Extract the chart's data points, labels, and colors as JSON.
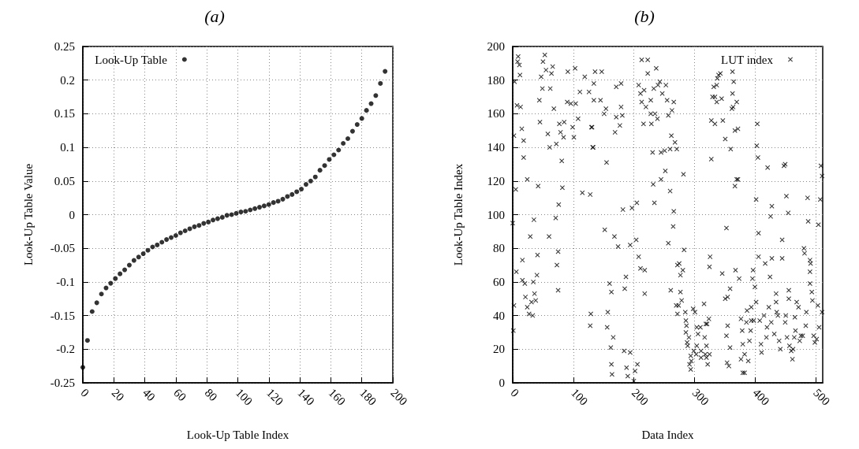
{
  "chart_data": [
    {
      "type": "scatter",
      "title": "(a)",
      "xlabel": "Look-Up Table Index",
      "ylabel": "Look-Up Table Value",
      "xlim": [
        0,
        200
      ],
      "xticks": [
        0,
        20,
        40,
        60,
        80,
        100,
        120,
        140,
        160,
        180,
        200
      ],
      "ylim": [
        -0.25,
        0.25
      ],
      "yticks": [
        -0.25,
        -0.2,
        -0.15,
        -0.1,
        -0.05,
        0,
        0.05,
        0.1,
        0.15,
        0.2,
        0.25
      ],
      "grid": true,
      "legend": "top left",
      "marker": "circle",
      "series": [
        {
          "name": "Look-Up Table",
          "color": "#000000",
          "x": [
            0,
            3,
            6,
            9,
            12,
            15,
            18,
            21,
            24,
            27,
            30,
            33,
            36,
            39,
            42,
            45,
            48,
            51,
            54,
            57,
            60,
            63,
            66,
            69,
            72,
            75,
            78,
            81,
            84,
            87,
            90,
            93,
            96,
            99,
            102,
            105,
            108,
            111,
            114,
            117,
            120,
            123,
            126,
            129,
            132,
            135,
            138,
            141,
            144,
            147,
            150,
            153,
            156,
            159,
            162,
            165,
            168,
            171,
            174,
            177,
            180,
            183,
            186,
            189,
            192,
            195
          ],
          "values": [
            -0.227,
            -0.187,
            -0.144,
            -0.131,
            -0.118,
            -0.109,
            -0.102,
            -0.095,
            -0.088,
            -0.082,
            -0.075,
            -0.068,
            -0.063,
            -0.058,
            -0.053,
            -0.048,
            -0.045,
            -0.041,
            -0.037,
            -0.034,
            -0.031,
            -0.027,
            -0.024,
            -0.021,
            -0.018,
            -0.016,
            -0.013,
            -0.011,
            -0.008,
            -0.006,
            -0.004,
            -0.001,
            0,
            0.002,
            0.004,
            0.005,
            0.007,
            0.009,
            0.011,
            0.013,
            0.015,
            0.018,
            0.02,
            0.023,
            0.027,
            0.03,
            0.034,
            0.038,
            0.045,
            0.05,
            0.056,
            0.066,
            0.073,
            0.082,
            0.089,
            0.096,
            0.106,
            0.113,
            0.124,
            0.134,
            0.143,
            0.155,
            0.165,
            0.177,
            0.195,
            0.213
          ]
        }
      ]
    },
    {
      "type": "scatter",
      "title": "(b)",
      "xlabel": "Data Index",
      "ylabel": "Look-Up Table Index",
      "xlim": [
        0,
        512
      ],
      "xticks": [
        0,
        100,
        200,
        300,
        400,
        500
      ],
      "ylim": [
        0,
        200
      ],
      "yticks": [
        0,
        20,
        40,
        60,
        80,
        100,
        120,
        140,
        160,
        180,
        200
      ],
      "grid": true,
      "legend": "top right",
      "marker": "cross",
      "series": [
        {
          "name": "LUT index",
          "color": "#000000",
          "x": [
            0,
            1,
            2,
            2,
            3,
            5,
            6,
            7,
            9,
            8,
            11,
            12,
            13,
            15,
            16,
            16,
            18,
            18,
            20,
            21,
            24,
            24,
            27,
            29,
            33,
            34,
            35,
            31,
            36,
            38,
            40,
            41,
            42,
            44,
            45,
            47,
            49,
            50,
            53,
            55,
            58,
            60,
            61,
            62,
            64,
            66,
            68,
            71,
            72,
            73,
            75,
            75,
            76,
            77,
            79,
            81,
            82,
            84,
            85,
            90,
            91,
            96,
            99,
            101,
            103,
            104,
            108,
            111,
            115,
            119,
            126,
            128,
            128,
            129,
            131,
            133,
            134,
            136,
            134,
            147,
            145,
            151,
            154,
            130,
            132,
            155,
            152,
            168,
            174,
            160,
            163,
            157,
            156,
            166,
            162,
            163,
            164,
            171,
            179,
            171,
            177,
            169,
            181,
            179,
            182,
            187,
            185,
            184,
            188,
            190,
            194,
            194,
            197,
            200,
            202,
            204,
            205,
            206,
            213,
            223,
            223,
            237,
            208,
            211,
            217,
            213,
            220,
            228,
            228,
            235,
            239,
            216,
            229,
            233,
            240,
            243,
            247,
            253,
            255,
            266,
            263,
            257,
            231,
            245,
            251,
            260,
            262,
            268,
            271,
            252,
            245,
            232,
            260,
            282,
            234,
            266,
            265,
            257,
            283,
            208,
            211,
            218,
            218,
            261,
            272,
            275,
            281,
            277,
            277,
            279,
            270,
            274,
            272,
            285,
            286,
            287,
            286,
            291,
            288,
            289,
            294,
            292,
            295,
            294,
            299,
            298,
            301,
            304,
            306,
            304,
            303,
            310,
            311,
            311,
            317,
            316,
            319,
            321,
            324,
            320,
            318,
            322,
            320,
            325,
            326,
            325,
            328,
            328,
            334,
            330,
            334,
            332,
            337,
            338,
            340,
            343,
            345,
            337,
            347,
            351,
            353,
            346,
            351,
            355,
            355,
            353,
            359,
            359,
            354,
            357,
            360,
            363,
            365,
            363,
            370,
            362,
            364,
            368,
            374,
            367,
            372,
            370,
            367,
            372,
            377,
            379,
            380,
            377,
            380,
            383,
            383,
            386,
            387,
            389,
            391,
            393,
            394,
            394,
            396,
            397,
            400,
            402,
            398,
            402,
            404,
            403,
            405,
            406,
            406,
            410,
            411,
            408,
            415,
            417,
            419,
            420,
            421,
            425,
            428,
            426,
            428,
            423,
            427,
            432,
            435,
            435,
            436,
            438,
            440,
            442,
            445,
            445,
            448,
            450,
            451,
            450,
            452,
            453,
            455,
            456,
            456,
            457,
            460,
            462,
            463,
            465,
            466,
            467,
            469,
            472,
            474,
            476,
            479,
            481,
            482,
            484,
            485,
            487,
            488,
            491,
            492,
            491,
            491,
            494,
            495,
            497,
            499,
            502,
            504,
            505,
            506,
            508,
            509,
            511,
            511
          ],
          "values": [
            95,
            31,
            46,
            147,
            179,
            115,
            66,
            165,
            194,
            191,
            189,
            183,
            164,
            151,
            73,
            61,
            144,
            134,
            59,
            51,
            121,
            45,
            41,
            87,
            40,
            60,
            97,
            48,
            53,
            49,
            64,
            76,
            117,
            168,
            155,
            182,
            175,
            191,
            195,
            186,
            148,
            87,
            140,
            175,
            184,
            188,
            163,
            98,
            142,
            70,
            78,
            55,
            106,
            154,
            149,
            132,
            116,
            146,
            155,
            167,
            185,
            166,
            152,
            146,
            187,
            166,
            157,
            173,
            113,
            182,
            173,
            112,
            34,
            41,
            152,
            140,
            168,
            185,
            178,
            185,
            168,
            160,
            163,
            152,
            140,
            131,
            91,
            87,
            81,
            59,
            54,
            42,
            33,
            27,
            21,
            11,
            5,
            176,
            178,
            158,
            153,
            149,
            159,
            164,
            103,
            63,
            56,
            19,
            9,
            4,
            18,
            82,
            104,
            1,
            7,
            85,
            107,
            11,
            192,
            192,
            184,
            187,
            177,
            172,
            174,
            167,
            164,
            168,
            160,
            160,
            157,
            154,
            154,
            175,
            177,
            179,
            172,
            177,
            168,
            167,
            162,
            159,
            137,
            137,
            138,
            139,
            147,
            143,
            139,
            126,
            121,
            118,
            114,
            124,
            107,
            102,
            93,
            83,
            79,
            75,
            68,
            67,
            53,
            55,
            70,
            71,
            67,
            64,
            54,
            49,
            46,
            46,
            41,
            42,
            37,
            34,
            30,
            27,
            24,
            22,
            16,
            11,
            13,
            8,
            19,
            44,
            42,
            33,
            29,
            22,
            17,
            33,
            19,
            15,
            27,
            47,
            35,
            35,
            38,
            22,
            17,
            11,
            15,
            17,
            75,
            69,
            133,
            156,
            154,
            170,
            170,
            176,
            177,
            181,
            183,
            184,
            169,
            167,
            156,
            145,
            92,
            65,
            50,
            51,
            34,
            28,
            21,
            56,
            12,
            10,
            139,
            185,
            179,
            172,
            167,
            163,
            164,
            67,
            62,
            150,
            151,
            121,
            117,
            121,
            38,
            31,
            23,
            14,
            6,
            6,
            17,
            36,
            43,
            13,
            25,
            31,
            45,
            37,
            62,
            67,
            57,
            48,
            37,
            109,
            154,
            141,
            134,
            89,
            75,
            23,
            18,
            37,
            40,
            71,
            27,
            33,
            128,
            63,
            105,
            99,
            74,
            45,
            36,
            29,
            53,
            48,
            42,
            40,
            25,
            20,
            85,
            74,
            129,
            130,
            40,
            36,
            111,
            27,
            101,
            55,
            50,
            22,
            19,
            14,
            20,
            27,
            39,
            31,
            48,
            45,
            25,
            28,
            28,
            80,
            77,
            34,
            42,
            110,
            96,
            73,
            71,
            59,
            66,
            54,
            49,
            28,
            24,
            26,
            46,
            94,
            33,
            109,
            129,
            123,
            42
          ]
        }
      ]
    }
  ]
}
